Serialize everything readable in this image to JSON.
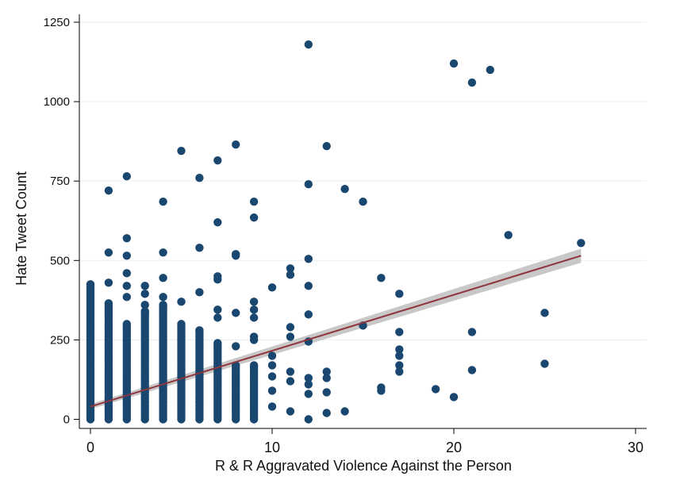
{
  "chart_data": {
    "type": "scatter",
    "title": "",
    "xlabel": "R & R Aggravated Violence Against the Person",
    "ylabel": "Hate Tweet Count",
    "xlim": [
      -1,
      30.5
    ],
    "ylim": [
      -20,
      1250
    ],
    "xticks": [
      0,
      10,
      20,
      30
    ],
    "yticks": [
      0,
      250,
      500,
      750,
      1000,
      1250
    ],
    "grid": "horizontal",
    "colors": {
      "points": "#1a476f",
      "fit_line": "#90353b",
      "confidence_band": "#c8c8c8"
    },
    "fit": {
      "x": [
        0,
        27
      ],
      "y": [
        40,
        515
      ],
      "ci_halfwidth": [
        8,
        22
      ]
    },
    "series": [
      {
        "points": [
          [
            1,
            720
          ],
          [
            1,
            525
          ],
          [
            1,
            430
          ],
          [
            2,
            765
          ],
          [
            2,
            570
          ],
          [
            2,
            515
          ],
          [
            2,
            460
          ],
          [
            2,
            420
          ],
          [
            2,
            385
          ],
          [
            3,
            420
          ],
          [
            3,
            395
          ],
          [
            3,
            360
          ],
          [
            4,
            685
          ],
          [
            4,
            525
          ],
          [
            4,
            445
          ],
          [
            4,
            385
          ],
          [
            5,
            845
          ],
          [
            5,
            370
          ],
          [
            6,
            760
          ],
          [
            6,
            540
          ],
          [
            6,
            400
          ],
          [
            7,
            815
          ],
          [
            7,
            620
          ],
          [
            7,
            450
          ],
          [
            7,
            440
          ],
          [
            7,
            345
          ],
          [
            7,
            320
          ],
          [
            8,
            865
          ],
          [
            8,
            520
          ],
          [
            8,
            515
          ],
          [
            8,
            335
          ],
          [
            8,
            230
          ],
          [
            9,
            685
          ],
          [
            9,
            635
          ],
          [
            9,
            370
          ],
          [
            9,
            345
          ],
          [
            9,
            320
          ],
          [
            9,
            260
          ],
          [
            9,
            250
          ],
          [
            10,
            415
          ],
          [
            10,
            200
          ],
          [
            10,
            170
          ],
          [
            10,
            135
          ],
          [
            10,
            90
          ],
          [
            10,
            40
          ],
          [
            11,
            475
          ],
          [
            11,
            455
          ],
          [
            11,
            290
          ],
          [
            11,
            260
          ],
          [
            11,
            150
          ],
          [
            11,
            120
          ],
          [
            11,
            25
          ],
          [
            12,
            1180
          ],
          [
            12,
            740
          ],
          [
            12,
            505
          ],
          [
            12,
            420
          ],
          [
            12,
            330
          ],
          [
            12,
            245
          ],
          [
            12,
            130
          ],
          [
            12,
            110
          ],
          [
            12,
            80
          ],
          [
            12,
            0
          ],
          [
            13,
            860
          ],
          [
            13,
            150
          ],
          [
            13,
            130
          ],
          [
            13,
            85
          ],
          [
            13,
            20
          ],
          [
            14,
            725
          ],
          [
            14,
            25
          ],
          [
            15,
            685
          ],
          [
            15,
            295
          ],
          [
            16,
            445
          ],
          [
            16,
            100
          ],
          [
            16,
            90
          ],
          [
            17,
            395
          ],
          [
            17,
            275
          ],
          [
            17,
            220
          ],
          [
            17,
            200
          ],
          [
            17,
            170
          ],
          [
            17,
            150
          ],
          [
            19,
            95
          ],
          [
            20,
            1120
          ],
          [
            20,
            70
          ],
          [
            21,
            1060
          ],
          [
            21,
            275
          ],
          [
            21,
            155
          ],
          [
            22,
            1100
          ],
          [
            23,
            580
          ],
          [
            25,
            335
          ],
          [
            25,
            175
          ],
          [
            27,
            555
          ]
        ]
      }
    ],
    "dense_columns": [
      {
        "x": 0,
        "y_range": [
          0,
          425
        ]
      },
      {
        "x": 1,
        "y_range": [
          0,
          365
        ]
      },
      {
        "x": 2,
        "y_range": [
          0,
          300
        ]
      },
      {
        "x": 3,
        "y_range": [
          0,
          340
        ]
      },
      {
        "x": 4,
        "y_range": [
          0,
          360
        ]
      },
      {
        "x": 5,
        "y_range": [
          0,
          300
        ]
      },
      {
        "x": 6,
        "y_range": [
          0,
          280
        ]
      },
      {
        "x": 7,
        "y_range": [
          0,
          240
        ]
      },
      {
        "x": 8,
        "y_range": [
          0,
          170
        ]
      },
      {
        "x": 9,
        "y_range": [
          0,
          170
        ]
      }
    ]
  }
}
